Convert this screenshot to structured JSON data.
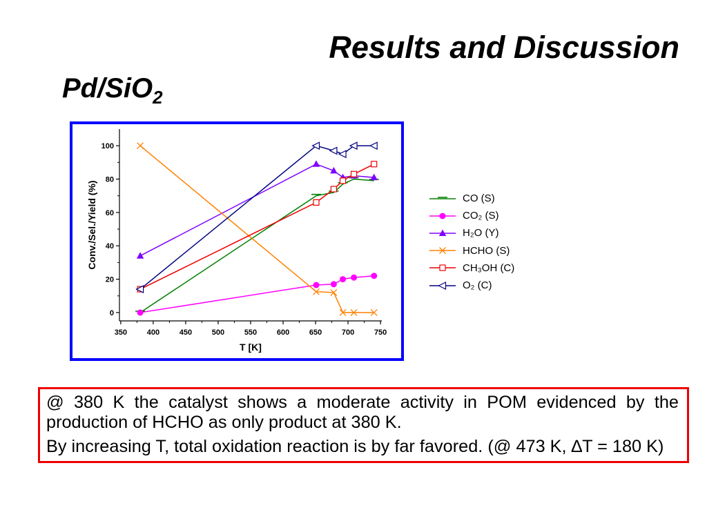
{
  "slide": {
    "title": "Results and Discussion",
    "subtitle": {
      "main": "Pd/SiO",
      "sub": "2"
    },
    "note": {
      "paragraphs": [
        "@ 380 K the catalyst shows a moderate activity in POM evidenced by the production of HCHO as only product at 380 K.",
        "By increasing T, total oxidation reaction is by far favored. (@ 473 K, ∆T = 180 K)"
      ]
    },
    "colors": {
      "frame_border": "#0000ff",
      "note_border": "#ee0000",
      "text": "#000000"
    }
  },
  "chart_data": {
    "type": "line",
    "xlabel": "T [K]",
    "ylabel": "Conv./Sel./Yield (%)",
    "xlim": [
      348,
      752
    ],
    "ylim": [
      -5,
      110
    ],
    "x_ticks": [
      350,
      400,
      450,
      500,
      550,
      600,
      650,
      700,
      750
    ],
    "y_ticks": [
      0,
      20,
      40,
      60,
      80,
      100
    ],
    "grid": false,
    "legend": "right",
    "x": [
      380,
      651,
      678,
      692,
      709,
      740
    ],
    "series": [
      {
        "name": "CO (S)",
        "color": "#008000",
        "marker": "dash",
        "values": [
          0,
          70,
          72,
          77,
          80,
          79
        ]
      },
      {
        "name": "CO₂ (S)",
        "color": "#ff00ff",
        "marker": "filled-circle",
        "values": [
          0,
          16.5,
          17,
          20,
          21,
          22
        ]
      },
      {
        "name": "H₂O (Y)",
        "color": "#8000ff",
        "marker": "filled-triangle-up",
        "values": [
          34,
          89,
          85,
          81,
          82,
          81
        ]
      },
      {
        "name": "HCHO (S)",
        "color": "#ff8000",
        "marker": "cross",
        "values": [
          100,
          12.5,
          12,
          0,
          0,
          0
        ]
      },
      {
        "name": "CH₃OH (C)",
        "color": "#ee0000",
        "marker": "open-square",
        "values": [
          14,
          66,
          74,
          79,
          83,
          89
        ]
      },
      {
        "name": "O₂ (C)",
        "color": "#000080",
        "marker": "open-triangle-left",
        "values": [
          14,
          100,
          97,
          95,
          100,
          100
        ]
      }
    ]
  }
}
